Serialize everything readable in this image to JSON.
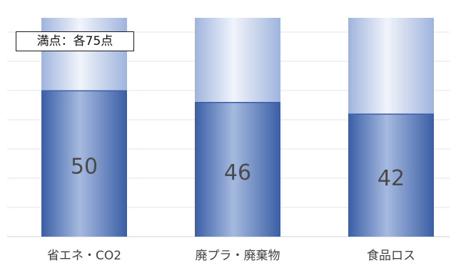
{
  "chart_data": {
    "type": "bar",
    "categories": [
      "省エネ・CO2",
      "廃プラ・廃棄物",
      "食品ロス"
    ],
    "values": [
      50,
      46,
      42
    ],
    "max_values": [
      75,
      75,
      75
    ],
    "ylim": [
      0,
      75
    ],
    "grid": true,
    "annotation": "満点：各75点",
    "colors": {
      "bar_dark": "#3d64ad",
      "bar_mid": "#9db3dc",
      "bar_light": "#eef2fb",
      "grid": "#e6e6e6"
    }
  }
}
